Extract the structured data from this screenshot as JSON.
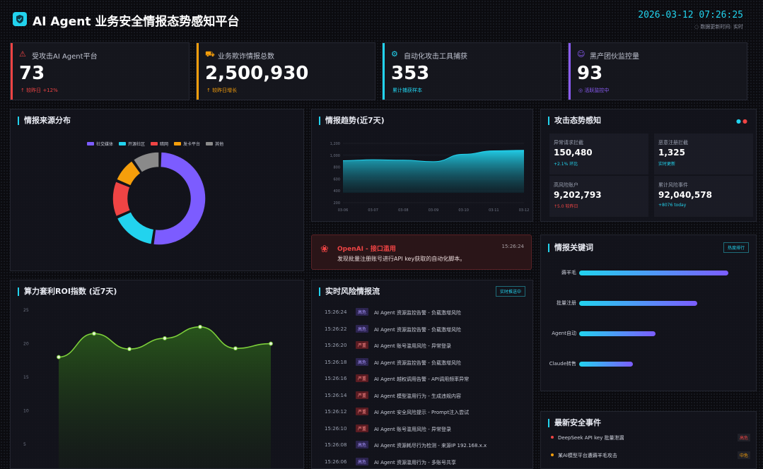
{
  "header": {
    "title": "AI Agent 业务安全情报态势感知平台",
    "datetime": "2026-03-12 07:26:25",
    "refresh": "数据更新时间: 实时"
  },
  "kpis": [
    {
      "label": "受攻击AI Agent平台",
      "value": "73",
      "sub": "↑ 较昨日 +12%",
      "color": "#ef4444",
      "icon": "⚠"
    },
    {
      "label": "业务欺诈情报总数",
      "value": "2,500,930",
      "sub": "↑ 较昨日增长",
      "color": "#f59e0b",
      "icon": "⛟"
    },
    {
      "label": "自动化攻击工具捕获",
      "value": "353",
      "sub": "累计捕获样本",
      "color": "#22d3ee",
      "icon": "⚙"
    },
    {
      "label": "黑产团伙监控量",
      "value": "93",
      "sub": "◎ 活跃监控中",
      "color": "#8b5cf6",
      "icon": "☺"
    }
  ],
  "source": {
    "title": "情报来源分布",
    "legend": [
      {
        "name": "社交媒体",
        "color": "#7c5cff"
      },
      {
        "name": "开源社区",
        "color": "#22d3ee"
      },
      {
        "name": "暗网",
        "color": "#ef4444"
      },
      {
        "name": "发卡平台",
        "color": "#f59e0b"
      },
      {
        "name": "其他",
        "color": "#8a8a8a"
      }
    ],
    "shares": [
      0.52,
      0.16,
      0.13,
      0.09,
      0.1
    ]
  },
  "trend": {
    "title": "情报趋势(近7天)",
    "yticks": [
      "1,200",
      "1,000",
      "800",
      "600",
      "400",
      "200"
    ],
    "xticks": [
      "03-06",
      "03-07",
      "03-08",
      "03-09",
      "03-10",
      "03-11",
      "03-12"
    ],
    "values": [
      850,
      870,
      860,
      830,
      980,
      1050,
      1060
    ]
  },
  "alert": {
    "title": "OpenAI - 接口滥用",
    "time": "15:26:24",
    "text": "发现批量注册账号进行API key获取的自动化脚本。"
  },
  "roi": {
    "title": "算力套利ROI指数 (近7天)",
    "yticks": [
      "25",
      "20",
      "15",
      "10",
      "5"
    ],
    "values": [
      18,
      21.5,
      19.2,
      20.8,
      22.5,
      19.3,
      20
    ]
  },
  "risk": {
    "title": "实时风险情报流",
    "badge": "实时推送中",
    "rows": [
      {
        "time": "15:26:24",
        "tag": "高危",
        "msg": "AI Agent 资源监控告警 - 负载激增风险"
      },
      {
        "time": "15:26:22",
        "tag": "高危",
        "msg": "AI Agent 资源监控告警 - 负载激增风险"
      },
      {
        "time": "15:26:20",
        "tag": "严重",
        "msg": "AI Agent 账号滥用风险 - 异常登录"
      },
      {
        "time": "15:26:18",
        "tag": "高危",
        "msg": "AI Agent 资源监控告警 - 负载激增风险"
      },
      {
        "time": "15:26:16",
        "tag": "严重",
        "msg": "AI Agent 越权调用告警 - API调用频率异常"
      },
      {
        "time": "15:26:14",
        "tag": "严重",
        "msg": "AI Agent 模型滥用行为 - 生成违规内容"
      },
      {
        "time": "15:26:12",
        "tag": "严重",
        "msg": "AI Agent 安全风险提示 - Prompt注入尝试"
      },
      {
        "time": "15:26:10",
        "tag": "严重",
        "msg": "AI Agent 账号滥用风险 - 异常登录"
      },
      {
        "time": "15:26:08",
        "tag": "高危",
        "msg": "AI Agent 资源耗尽行为检测 - 来源IP 192.168.x.x"
      },
      {
        "time": "15:26:06",
        "tag": "高危",
        "msg": "AI Agent 资源滥用行为 - 多账号共享"
      }
    ]
  },
  "attack": {
    "title": "攻击态势感知",
    "stats": [
      {
        "k": "异常请求拦截",
        "v": "150,480",
        "d": "+2.1% 环比",
        "dc": "#22d3ee"
      },
      {
        "k": "恶意注册拦截",
        "v": "1,325",
        "d": "实时更新",
        "dc": "#22d3ee"
      },
      {
        "k": "高风险账户",
        "v": "9,202,793",
        "d": "↑5.0 较昨日",
        "dc": "#ef4444"
      },
      {
        "k": "累计风险事件",
        "v": "92,040,578",
        "d": "+8076 today",
        "dc": "#22d3ee"
      }
    ]
  },
  "keywords": {
    "title": "情报关键词",
    "badge": "热度排行",
    "items": [
      {
        "name": "薅羊毛",
        "w": 0.78
      },
      {
        "name": "批量注册",
        "w": 0.62
      },
      {
        "name": "Agent自动",
        "w": 0.4
      },
      {
        "name": "Claude转售",
        "w": 0.28
      }
    ]
  },
  "events": {
    "title": "最新安全事件",
    "items": [
      {
        "text": "DeepSeek API key 批量泄漏",
        "tag": "高危",
        "dot": "#ef4444"
      },
      {
        "text": "某AI模型平台遭薅羊毛攻击",
        "tag": "中危",
        "dot": "#f59e0b"
      }
    ]
  }
}
